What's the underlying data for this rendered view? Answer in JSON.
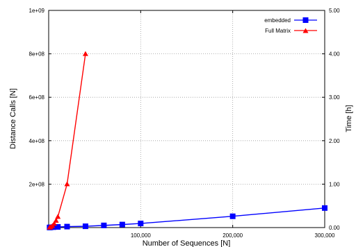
{
  "chart_data": {
    "type": "line",
    "xlabel": "Number of Sequences [N]",
    "ylabel": "Distance Calls [N]",
    "y2label": "Time [h]",
    "xlim": [
      0,
      300000
    ],
    "ylim": [
      0,
      1000000000
    ],
    "y2lim": [
      0,
      5
    ],
    "grid": true,
    "legend_position": "top-right",
    "xticks": [
      {
        "value": 100000,
        "label": "100,000"
      },
      {
        "value": 200000,
        "label": "200,000"
      },
      {
        "value": 300000,
        "label": "300,000"
      }
    ],
    "yticks": [
      {
        "value": 200000000,
        "label": "2e+08"
      },
      {
        "value": 400000000,
        "label": "4e+08"
      },
      {
        "value": 600000000,
        "label": "6e+08"
      },
      {
        "value": 800000000,
        "label": "8e+08"
      },
      {
        "value": 1000000000,
        "label": "1e+09"
      }
    ],
    "y2ticks": [
      {
        "value": 0,
        "label": "0.00"
      },
      {
        "value": 1,
        "label": "1.00"
      },
      {
        "value": 2,
        "label": "2.00"
      },
      {
        "value": 3,
        "label": "3.00"
      },
      {
        "value": 4,
        "label": "4.00"
      },
      {
        "value": 5,
        "label": "5.00"
      }
    ],
    "series": [
      {
        "name": "embedded",
        "color": "#0000ff",
        "marker": "square",
        "points": [
          [
            1000,
            500000
          ],
          [
            2000,
            1000000
          ],
          [
            5000,
            2000000
          ],
          [
            10000,
            3000000
          ],
          [
            20000,
            4500000
          ],
          [
            40000,
            6000000
          ],
          [
            60000,
            10000000
          ],
          [
            80000,
            14000000
          ],
          [
            100000,
            19000000
          ],
          [
            200000,
            52000000
          ],
          [
            300000,
            90000000
          ]
        ]
      },
      {
        "name": "Full Matrix",
        "color": "#ff0000",
        "marker": "triangle",
        "points": [
          [
            1000,
            500000
          ],
          [
            2000,
            2000000
          ],
          [
            4000,
            8000000
          ],
          [
            6000,
            18000000
          ],
          [
            8000,
            32000000
          ],
          [
            10000,
            50000000
          ],
          [
            20000,
            200000000
          ],
          [
            40000,
            800000000
          ]
        ]
      }
    ]
  }
}
